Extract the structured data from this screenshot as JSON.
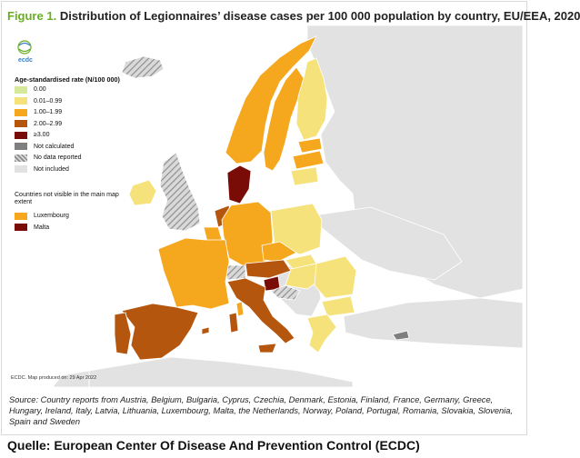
{
  "figure": {
    "lead": "Figure 1.",
    "title": "Distribution of Legionnaires’ disease cases per 100 000 population by country, EU/EEA, 2020"
  },
  "logo": {
    "text": "ecdc"
  },
  "legend": {
    "title": "Age-standardised rate (N/100 000)",
    "items": [
      {
        "label": "0.00",
        "color": "#d6e89a"
      },
      {
        "label": "0.01–0.99",
        "color": "#f6e27a"
      },
      {
        "label": "1.00–1.99",
        "color": "#f5a71e"
      },
      {
        "label": "2.00–2.99",
        "color": "#b5560f"
      },
      {
        "label": "≥3.00",
        "color": "#7a0c08"
      },
      {
        "label": "Not calculated",
        "color": "#7f7f7f"
      },
      {
        "label": "No data reported",
        "color": "hatched"
      },
      {
        "label": "Not included",
        "color": "#e2e2e2"
      }
    ],
    "inset_title": "Countries not visible in the main map extent",
    "inset_items": [
      {
        "label": "Luxembourg",
        "color": "#f5a71e"
      },
      {
        "label": "Malta",
        "color": "#7a0c08"
      }
    ]
  },
  "map_note": "ECDC. Map produced on: 29 Apr 2022",
  "source": "Source: Country reports from Austria, Belgium, Bulgaria, Cyprus, Czechia, Denmark, Estonia, Finland, France, Germany, Greece, Hungary, Ireland, Italy, Latvia, Lithuania, Luxembourg, Malta, the Netherlands, Norway, Poland, Portugal, Romania, Slovakia, Slovenia, Spain and Sweden",
  "caption": "Quelle: European Center Of Disease And Prevention Control (ECDC)",
  "map_colors": {
    "sea": "#ffffff",
    "not_included": "#e2e2e2",
    "border": "#ffffff",
    "hatch": "#8a8a8a"
  }
}
